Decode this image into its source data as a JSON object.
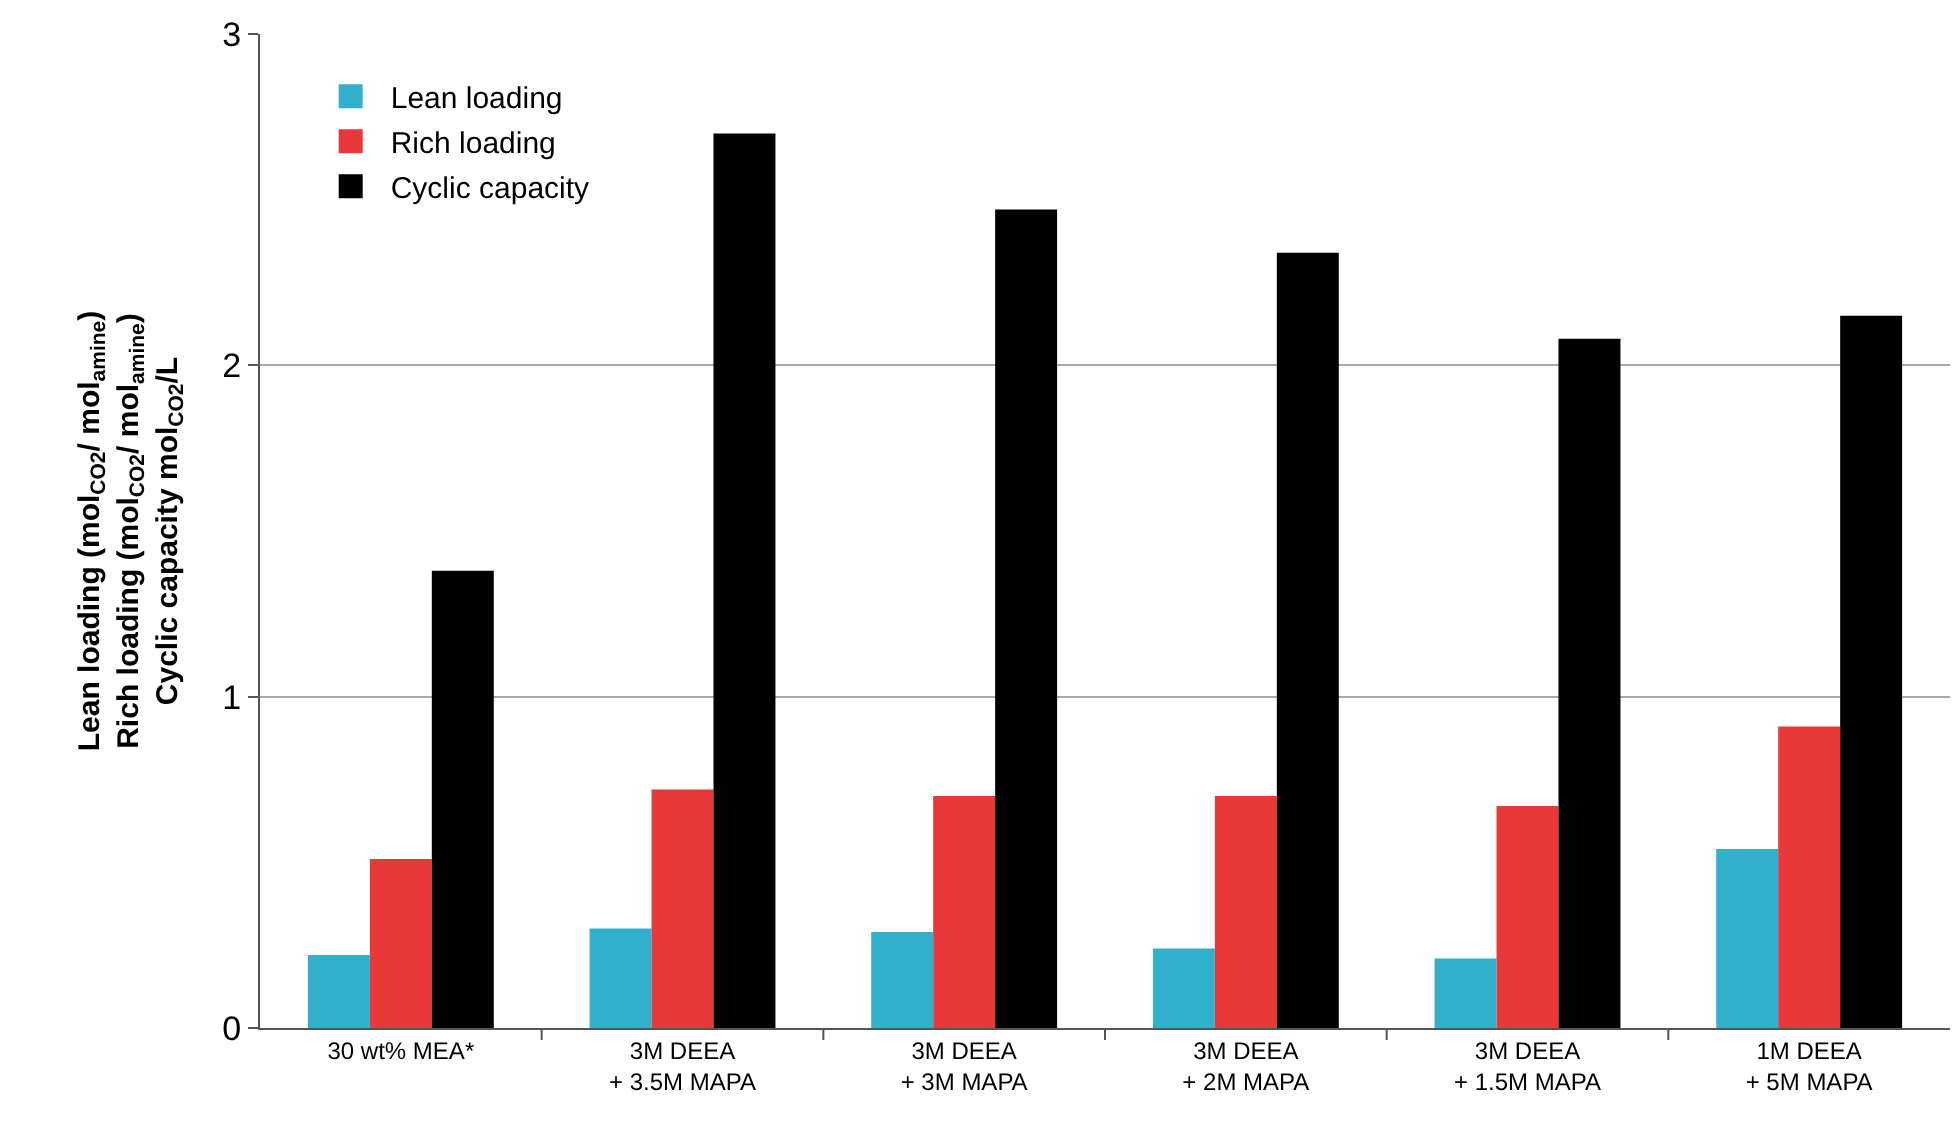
{
  "chart_data": {
    "type": "bar",
    "ylabel": "Lean loading (mol$_{CO2}$/ mol$_{amine}$)\nRich loading (mol$_{CO2}$/ mol$_{amine}$)\nCyclic capacity mol$_{CO2}$/L",
    "categories": [
      "30 wt% MEA*",
      "3M DEEA\n+ 3.5M MAPA",
      "3M DEEA\n+ 3M MAPA",
      "3M DEEA\n+ 2M MAPA",
      "3M DEEA\n+ 1.5M MAPA",
      "1M DEEA\n+ 5M MAPA"
    ],
    "series": [
      {
        "name": "Lean loading",
        "color": "#31b0cc",
        "values": [
          0.22,
          0.3,
          0.29,
          0.24,
          0.21,
          0.54
        ]
      },
      {
        "name": "Rich loading",
        "color": "#e8383a",
        "values": [
          0.51,
          0.72,
          0.7,
          0.7,
          0.67,
          0.91
        ]
      },
      {
        "name": "Cyclic capacity",
        "color": "#000000",
        "values": [
          1.38,
          2.7,
          2.47,
          2.34,
          2.08,
          2.15
        ]
      }
    ],
    "ylim": [
      0,
      3
    ],
    "yticks": [
      0,
      1,
      2,
      3
    ],
    "grid": "y",
    "legend": "top left"
  }
}
